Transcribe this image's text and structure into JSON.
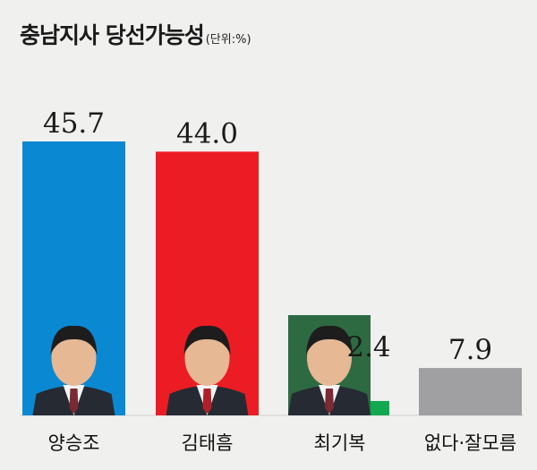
{
  "chart_data": {
    "type": "bar",
    "title": "충남지사 당선가능성",
    "unit": "(단위:%)",
    "categories": [
      "양승조",
      "김태흠",
      "최기복",
      "없다·잘모름"
    ],
    "values": [
      45.7,
      44.0,
      2.4,
      7.9
    ],
    "value_labels": [
      "45.7",
      "44.0",
      "2.4",
      "7.9"
    ],
    "colors": [
      "#0b88d2",
      "#ec1c24",
      "#11a84f",
      "#a0a0a2"
    ],
    "photos": [
      "candidate-photo",
      "candidate-photo",
      "candidate-photo",
      ""
    ],
    "ylim": [
      0,
      45.7
    ],
    "grid": false,
    "legend": "none"
  }
}
